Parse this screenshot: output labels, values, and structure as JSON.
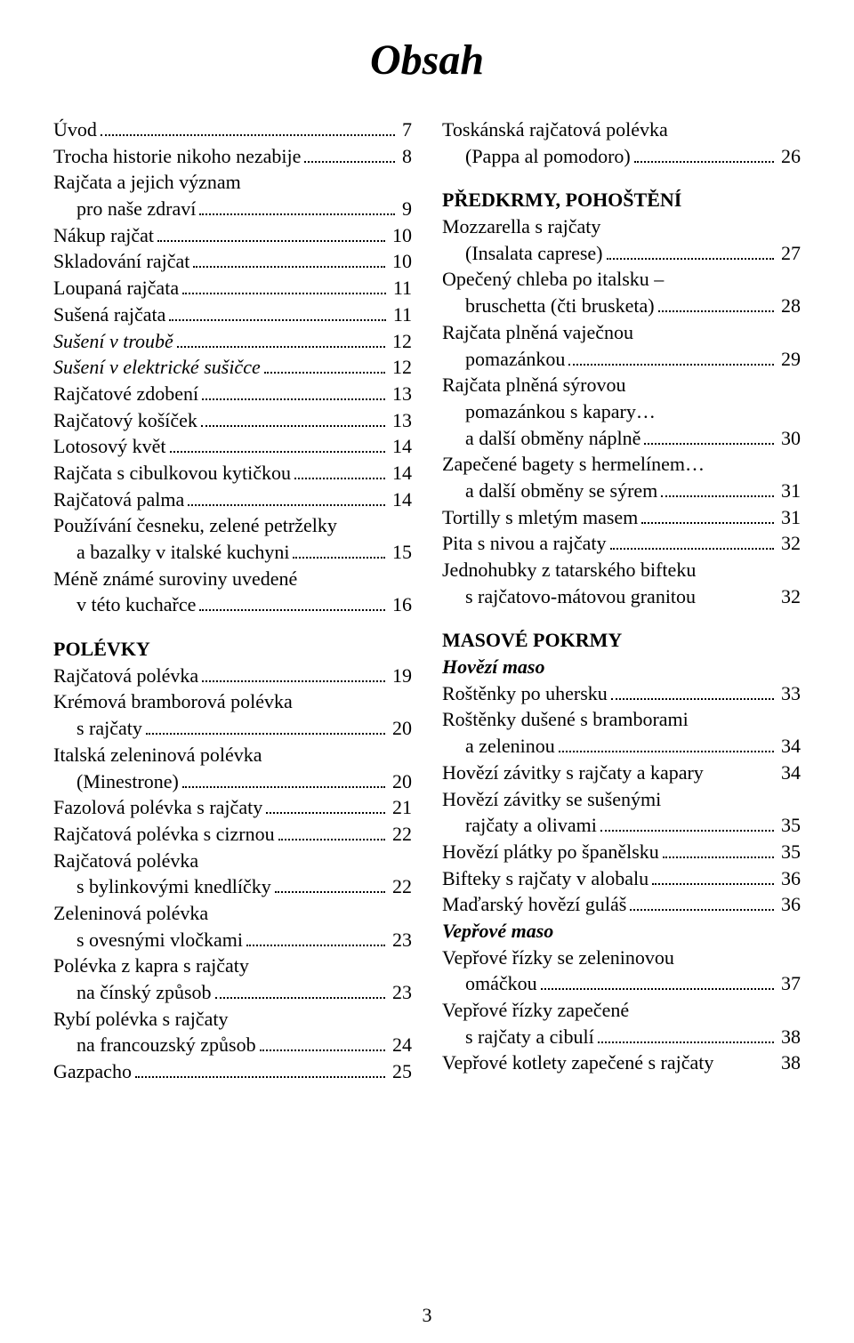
{
  "title": "Obsah",
  "page_number": "3",
  "left": [
    {
      "t": "entry",
      "label": "Úvod",
      "page": "7"
    },
    {
      "t": "entry",
      "label": "Trocha historie nikoho nezabije",
      "page": "8"
    },
    {
      "t": "wrap",
      "label": "Rajčata a jejich význam"
    },
    {
      "t": "entry",
      "indent": true,
      "label": "pro naše zdraví",
      "page": "9"
    },
    {
      "t": "entry",
      "label": "Nákup rajčat",
      "page": "10"
    },
    {
      "t": "entry",
      "label": "Skladování rajčat",
      "page": "10"
    },
    {
      "t": "entry",
      "label": "Loupaná rajčata",
      "page": "11"
    },
    {
      "t": "entry",
      "label": "Sušená rajčata",
      "page": "11"
    },
    {
      "t": "entry",
      "italic": true,
      "label": "Sušení v troubě",
      "page": "12"
    },
    {
      "t": "entry",
      "italic": true,
      "label": "Sušení v elektrické sušičce",
      "page": "12"
    },
    {
      "t": "entry",
      "label": "Rajčatové zdobení",
      "page": "13"
    },
    {
      "t": "entry",
      "label": "Rajčatový košíček",
      "page": "13"
    },
    {
      "t": "entry",
      "label": "Lotosový květ",
      "page": "14"
    },
    {
      "t": "entry",
      "label": "Rajčata s cibulkovou kytičkou",
      "page": "14"
    },
    {
      "t": "entry",
      "label": "Rajčatová palma",
      "page": "14"
    },
    {
      "t": "wrap",
      "label": "Používání česneku, zelené petrželky"
    },
    {
      "t": "entry",
      "indent": true,
      "label": "a bazalky v italské kuchyni",
      "page": "15"
    },
    {
      "t": "wrap",
      "label": "Méně známé suroviny uvedené"
    },
    {
      "t": "entry",
      "indent": true,
      "label": "v této kuchařce",
      "page": "16"
    },
    {
      "t": "section",
      "label": "POLÉVKY"
    },
    {
      "t": "entry",
      "label": "Rajčatová polévka",
      "page": "19"
    },
    {
      "t": "wrap",
      "label": "Krémová bramborová polévka"
    },
    {
      "t": "entry",
      "indent": true,
      "label": "s rajčaty",
      "page": "20"
    },
    {
      "t": "wrap",
      "label": "Italská zeleninová polévka"
    },
    {
      "t": "entry",
      "indent": true,
      "label": "(Minestrone)",
      "page": "20"
    },
    {
      "t": "entry",
      "label": "Fazolová polévka s rajčaty",
      "page": "21"
    },
    {
      "t": "entry",
      "label": "Rajčatová polévka s cizrnou",
      "page": "22"
    },
    {
      "t": "wrap",
      "label": "Rajčatová polévka"
    },
    {
      "t": "entry",
      "indent": true,
      "label": "s bylinkovými knedlíčky",
      "page": "22"
    },
    {
      "t": "wrap",
      "label": "Zeleninová polévka"
    },
    {
      "t": "entry",
      "indent": true,
      "label": "s ovesnými vločkami",
      "page": "23"
    },
    {
      "t": "wrap",
      "label": "Polévka z kapra s rajčaty"
    },
    {
      "t": "entry",
      "indent": true,
      "label": "na čínský způsob",
      "page": "23"
    },
    {
      "t": "wrap",
      "label": "Rybí polévka s rajčaty"
    },
    {
      "t": "entry",
      "indent": true,
      "label": "na francouzský způsob",
      "page": "24"
    },
    {
      "t": "entry",
      "label": "Gazpacho",
      "page": "25"
    }
  ],
  "right": [
    {
      "t": "wrap",
      "label": "Toskánská rajčatová polévka"
    },
    {
      "t": "entry",
      "indent": true,
      "label": "(Pappa al pomodoro)",
      "page": "26"
    },
    {
      "t": "section",
      "label": "PŘEDKRMY, POHOŠTĚNÍ"
    },
    {
      "t": "wrap",
      "label": "Mozzarella s rajčaty"
    },
    {
      "t": "entry",
      "indent": true,
      "label": "(Insalata caprese)",
      "page": "27"
    },
    {
      "t": "wrap",
      "label": "Opečený chleba po italsku –"
    },
    {
      "t": "entry",
      "indent": true,
      "label": "bruschetta (čti brusketa)",
      "page": "28"
    },
    {
      "t": "wrap",
      "label": "Rajčata plněná vaječnou"
    },
    {
      "t": "entry",
      "indent": true,
      "label": "pomazánkou",
      "page": "29"
    },
    {
      "t": "wrap",
      "label": "Rajčata plněná sýrovou"
    },
    {
      "t": "wrap",
      "indent": true,
      "label": "pomazánkou s kapary…"
    },
    {
      "t": "entry",
      "indent": true,
      "label": "a další obměny náplně",
      "page": "30"
    },
    {
      "t": "wrap",
      "label": "Zapečené bagety s hermelínem…"
    },
    {
      "t": "entry",
      "indent": true,
      "label": "a další obměny se sýrem",
      "page": "31"
    },
    {
      "t": "entry",
      "label": "Tortilly s mletým masem",
      "page": "31"
    },
    {
      "t": "entry",
      "label": "Pita s nivou a rajčaty",
      "page": "32"
    },
    {
      "t": "wrap",
      "label": "Jednohubky z tatarského bifteku"
    },
    {
      "t": "entry",
      "indent": true,
      "nodots": true,
      "label": "s rajčatovo-mátovou granitou",
      "page": "32"
    },
    {
      "t": "section",
      "label": "MASOVÉ POKRMY"
    },
    {
      "t": "subhead",
      "label": "Hovězí maso"
    },
    {
      "t": "entry",
      "label": "Roštěnky po uhersku",
      "page": "33"
    },
    {
      "t": "wrap",
      "label": "Roštěnky dušené s bramborami"
    },
    {
      "t": "entry",
      "indent": true,
      "label": "a zeleninou",
      "page": "34"
    },
    {
      "t": "entry",
      "nodots": true,
      "label": "Hovězí závitky s rajčaty a kapary",
      "page": "34"
    },
    {
      "t": "wrap",
      "label": "Hovězí závitky se sušenými"
    },
    {
      "t": "entry",
      "indent": true,
      "label": "rajčaty a olivami",
      "page": "35"
    },
    {
      "t": "entry",
      "label": "Hovězí plátky po španělsku",
      "page": "35"
    },
    {
      "t": "entry",
      "label": "Bifteky s rajčaty v alobalu",
      "page": "36"
    },
    {
      "t": "entry",
      "label": "Maďarský hovězí guláš",
      "page": "36"
    },
    {
      "t": "subhead",
      "label": "Vepřové maso"
    },
    {
      "t": "wrap",
      "label": "Vepřové řízky se zeleninovou"
    },
    {
      "t": "entry",
      "indent": true,
      "label": "omáčkou",
      "page": "37"
    },
    {
      "t": "wrap",
      "label": "Vepřové řízky zapečené"
    },
    {
      "t": "entry",
      "indent": true,
      "label": "s rajčaty a cibulí",
      "page": "38"
    },
    {
      "t": "entry",
      "nodots": true,
      "label": "Vepřové kotlety zapečené s rajčaty",
      "page": "38"
    }
  ]
}
